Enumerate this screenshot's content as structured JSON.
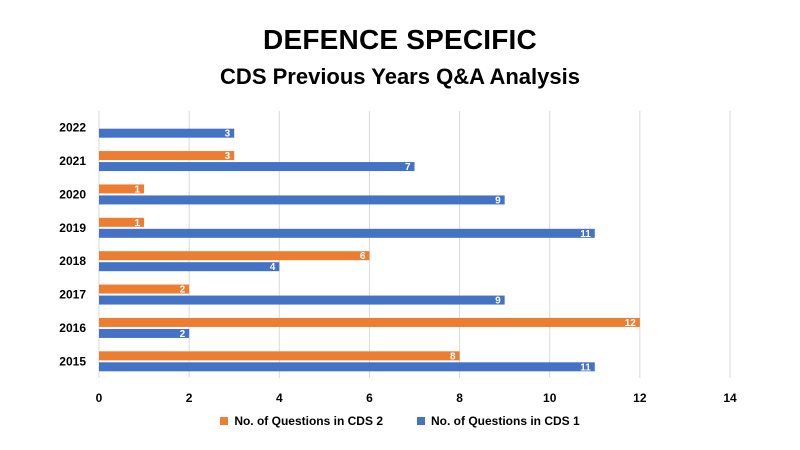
{
  "header": {
    "title": "DEFENCE SPECIFIC",
    "subtitle": "CDS Previous Years Q&A Analysis"
  },
  "colors": {
    "cds2": "#ED7D31",
    "cds1": "#4472C4",
    "grid": "#D9D9D9"
  },
  "chart_data": {
    "type": "bar",
    "orientation": "horizontal",
    "title": "DEFENCE SPECIFIC",
    "subtitle": "CDS Previous Years Q&A Analysis",
    "categories": [
      "2022",
      "2021",
      "2020",
      "2019",
      "2018",
      "2017",
      "2016",
      "2015"
    ],
    "series": [
      {
        "name": "No. of Questions in CDS 2",
        "color": "#ED7D31",
        "values": [
          null,
          3,
          1,
          1,
          6,
          2,
          12,
          8
        ]
      },
      {
        "name": "No. of Questions in CDS 1",
        "color": "#4472C4",
        "values": [
          3,
          7,
          9,
          11,
          4,
          9,
          2,
          11
        ]
      }
    ],
    "xlim": [
      0,
      14
    ],
    "xticks": [
      0,
      2,
      4,
      6,
      8,
      10,
      12,
      14
    ],
    "xlabel": "",
    "ylabel": "",
    "grid": "vertical",
    "data_labels": true,
    "legend_position": "bottom"
  }
}
